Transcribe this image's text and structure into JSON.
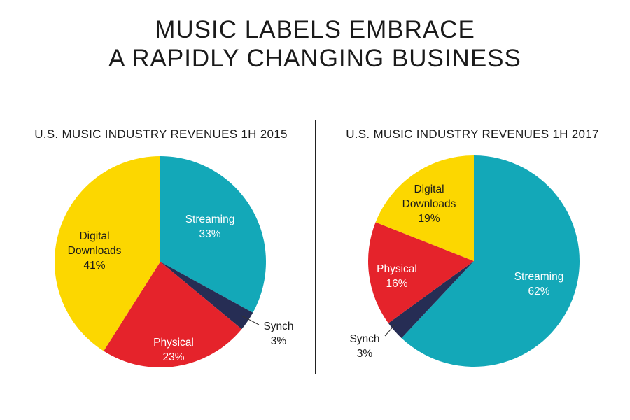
{
  "title": {
    "line1": "MUSIC LABELS EMBRACE",
    "line2": "A RAPIDLY CHANGING BUSINESS"
  },
  "chart_data": [
    {
      "type": "pie",
      "title": "U.S. MUSIC INDUSTRY REVENUES 1H 2015",
      "start_angle": 90,
      "direction": "clockwise",
      "slices": [
        {
          "name": "Streaming",
          "value": 33,
          "label": "33%",
          "color": "#13A8B8"
        },
        {
          "name": "Synch",
          "value": 3,
          "label": "3%",
          "color": "#262D54"
        },
        {
          "name": "Physical",
          "value": 23,
          "label": "23%",
          "color": "#E5232B"
        },
        {
          "name": "Digital Downloads",
          "value": 41,
          "label": "41%",
          "color": "#FCD700"
        }
      ]
    },
    {
      "type": "pie",
      "title": "U.S. MUSIC INDUSTRY REVENUES 1H 2017",
      "start_angle": 90,
      "direction": "clockwise",
      "slices": [
        {
          "name": "Streaming",
          "value": 62,
          "label": "62%",
          "color": "#13A8B8"
        },
        {
          "name": "Synch",
          "value": 3,
          "label": "3%",
          "color": "#262D54"
        },
        {
          "name": "Physical",
          "value": 16,
          "label": "16%",
          "color": "#E5232B"
        },
        {
          "name": "Digital Downloads",
          "value": 19,
          "label": "19%",
          "color": "#FCD700"
        }
      ]
    }
  ]
}
